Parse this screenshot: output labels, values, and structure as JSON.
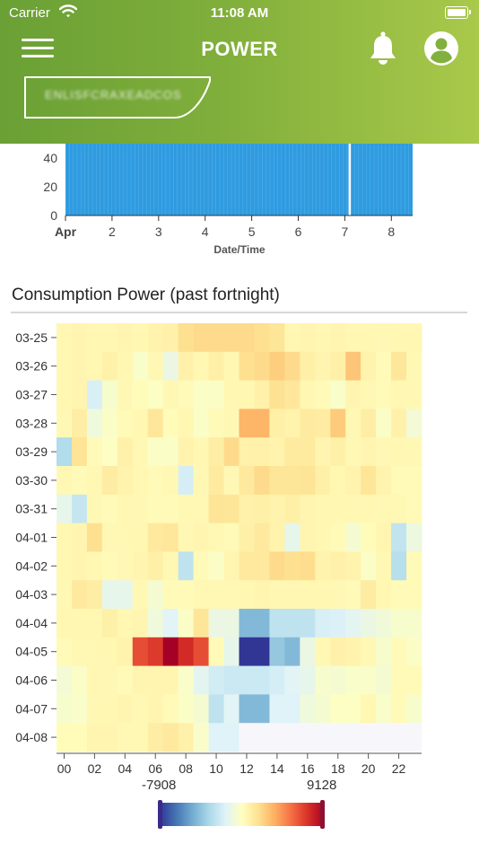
{
  "status": {
    "carrier": "Carrier",
    "time": "11:08 AM"
  },
  "header": {
    "title": "POWER",
    "site_name": "ENLISFCRAXEADCOS"
  },
  "icons": {
    "menu": "hamburger-icon",
    "notifications": "bell-icon",
    "profile": "user-icon",
    "wifi": "wifi-icon",
    "battery": "battery-icon"
  },
  "colors": {
    "header_start": "#6aa035",
    "header_end": "#a9c94a",
    "bar_fill": "#2f9be0"
  },
  "chart_data": [
    {
      "type": "bar",
      "xlabel": "Date/Time",
      "ylabel": "",
      "ylim": [
        0,
        60
      ],
      "y_ticks": [
        0,
        20,
        40
      ],
      "x_ticks": [
        "Apr",
        "2",
        "3",
        "4",
        "5",
        "6",
        "7",
        "8"
      ],
      "x_range": [
        1,
        8.5
      ],
      "value_level": 60,
      "gaps_at": [
        7.1
      ]
    },
    {
      "type": "heatmap",
      "title": "Consumption Power (past fortnight)",
      "row_labels": [
        "03-25",
        "03-26",
        "03-27",
        "03-28",
        "03-29",
        "03-30",
        "03-31",
        "04-01",
        "04-02",
        "04-03",
        "04-04",
        "04-05",
        "04-06",
        "04-07",
        "04-08"
      ],
      "column_labels": [
        "00",
        "02",
        "04",
        "06",
        "08",
        "10",
        "12",
        "14",
        "16",
        "18",
        "20",
        "22"
      ],
      "color_min": -7908,
      "color_max": 9128,
      "legend_min_label": "-7908",
      "legend_max_label": "9128",
      "colorscale": [
        "#313695",
        "#4575b4",
        "#74add1",
        "#abd9e9",
        "#e0f3f8",
        "#ffffbf",
        "#fee090",
        "#fdae61",
        "#f46d43",
        "#d73027",
        "#a50026"
      ],
      "values": [
        [
          500,
          600,
          500,
          500,
          600,
          500,
          700,
          800,
          1800,
          2000,
          2000,
          2000,
          2000,
          1800,
          1500,
          500,
          600,
          500,
          600,
          500,
          500,
          400,
          500,
          500
        ],
        [
          500,
          600,
          500,
          800,
          500,
          -300,
          400,
          -1000,
          800,
          500,
          900,
          500,
          1800,
          2000,
          2500,
          2000,
          900,
          600,
          900,
          2800,
          700,
          300,
          1400,
          400
        ],
        [
          500,
          600,
          -1800,
          -400,
          400,
          200,
          -100,
          400,
          300,
          -200,
          -200,
          500,
          500,
          800,
          1700,
          1400,
          500,
          300,
          -300,
          600,
          400,
          300,
          500,
          400
        ],
        [
          400,
          1000,
          -800,
          -200,
          300,
          500,
          1400,
          200,
          500,
          -200,
          300,
          400,
          3400,
          3400,
          900,
          700,
          1200,
          1100,
          2600,
          400,
          1000,
          -200,
          800,
          -600
        ],
        [
          -3000,
          1600,
          300,
          -100,
          800,
          400,
          -200,
          -200,
          700,
          500,
          1000,
          2000,
          800,
          800,
          700,
          1200,
          1200,
          600,
          900,
          400,
          600,
          400,
          500,
          400
        ],
        [
          400,
          300,
          400,
          1100,
          700,
          500,
          300,
          400,
          -1900,
          400,
          1200,
          400,
          1300,
          2000,
          1500,
          1500,
          1600,
          900,
          500,
          700,
          1500,
          700,
          300,
          300
        ],
        [
          -1200,
          -2400,
          400,
          300,
          500,
          400,
          300,
          300,
          400,
          400,
          1600,
          1500,
          800,
          900,
          700,
          900,
          600,
          500,
          500,
          400,
          500,
          400,
          400,
          300
        ],
        [
          500,
          600,
          1800,
          400,
          400,
          500,
          1300,
          1400,
          400,
          600,
          400,
          300,
          900,
          1300,
          700,
          -1200,
          600,
          500,
          300,
          -500,
          200,
          600,
          -2500,
          -900
        ],
        [
          500,
          600,
          500,
          300,
          400,
          600,
          900,
          400,
          -2600,
          300,
          -200,
          600,
          1300,
          1300,
          2000,
          1800,
          1900,
          700,
          800,
          700,
          -200,
          400,
          -2800,
          300
        ],
        [
          400,
          1300,
          1000,
          -1200,
          -1200,
          400,
          -500,
          300,
          300,
          400,
          400,
          400,
          500,
          600,
          500,
          500,
          500,
          500,
          400,
          300,
          1100,
          500,
          300,
          300
        ],
        [
          500,
          500,
          500,
          900,
          500,
          600,
          -800,
          -1500,
          -200,
          1500,
          -1000,
          -1000,
          -4300,
          -4300,
          -2600,
          -2600,
          -2600,
          -1800,
          -1700,
          -1400,
          -1000,
          -700,
          -400,
          -400
        ],
        [
          300,
          400,
          400,
          500,
          700,
          6400,
          7000,
          9128,
          7500,
          6400,
          300,
          -1200,
          -7908,
          -7908,
          -3800,
          -4300,
          -1000,
          400,
          800,
          700,
          400,
          -400,
          300,
          -200
        ],
        [
          -600,
          -200,
          500,
          400,
          300,
          600,
          600,
          600,
          -300,
          -1400,
          -2000,
          -2200,
          -2200,
          -2200,
          -1900,
          -1500,
          -1200,
          -400,
          -500,
          -300,
          -300,
          -500,
          300,
          300
        ],
        [
          -400,
          -300,
          400,
          500,
          600,
          400,
          600,
          300,
          -200,
          -500,
          -2600,
          -1500,
          -4300,
          -4300,
          -1600,
          -1600,
          -800,
          -500,
          -100,
          -100,
          500,
          -300,
          300,
          -400
        ],
        [
          200,
          200,
          600,
          600,
          400,
          400,
          1000,
          1300,
          800,
          -300,
          -1600,
          -1600,
          -50,
          -50,
          -50,
          -50,
          -50,
          -50,
          -50,
          -50,
          -50,
          -50,
          -50,
          -50
        ]
      ]
    }
  ]
}
